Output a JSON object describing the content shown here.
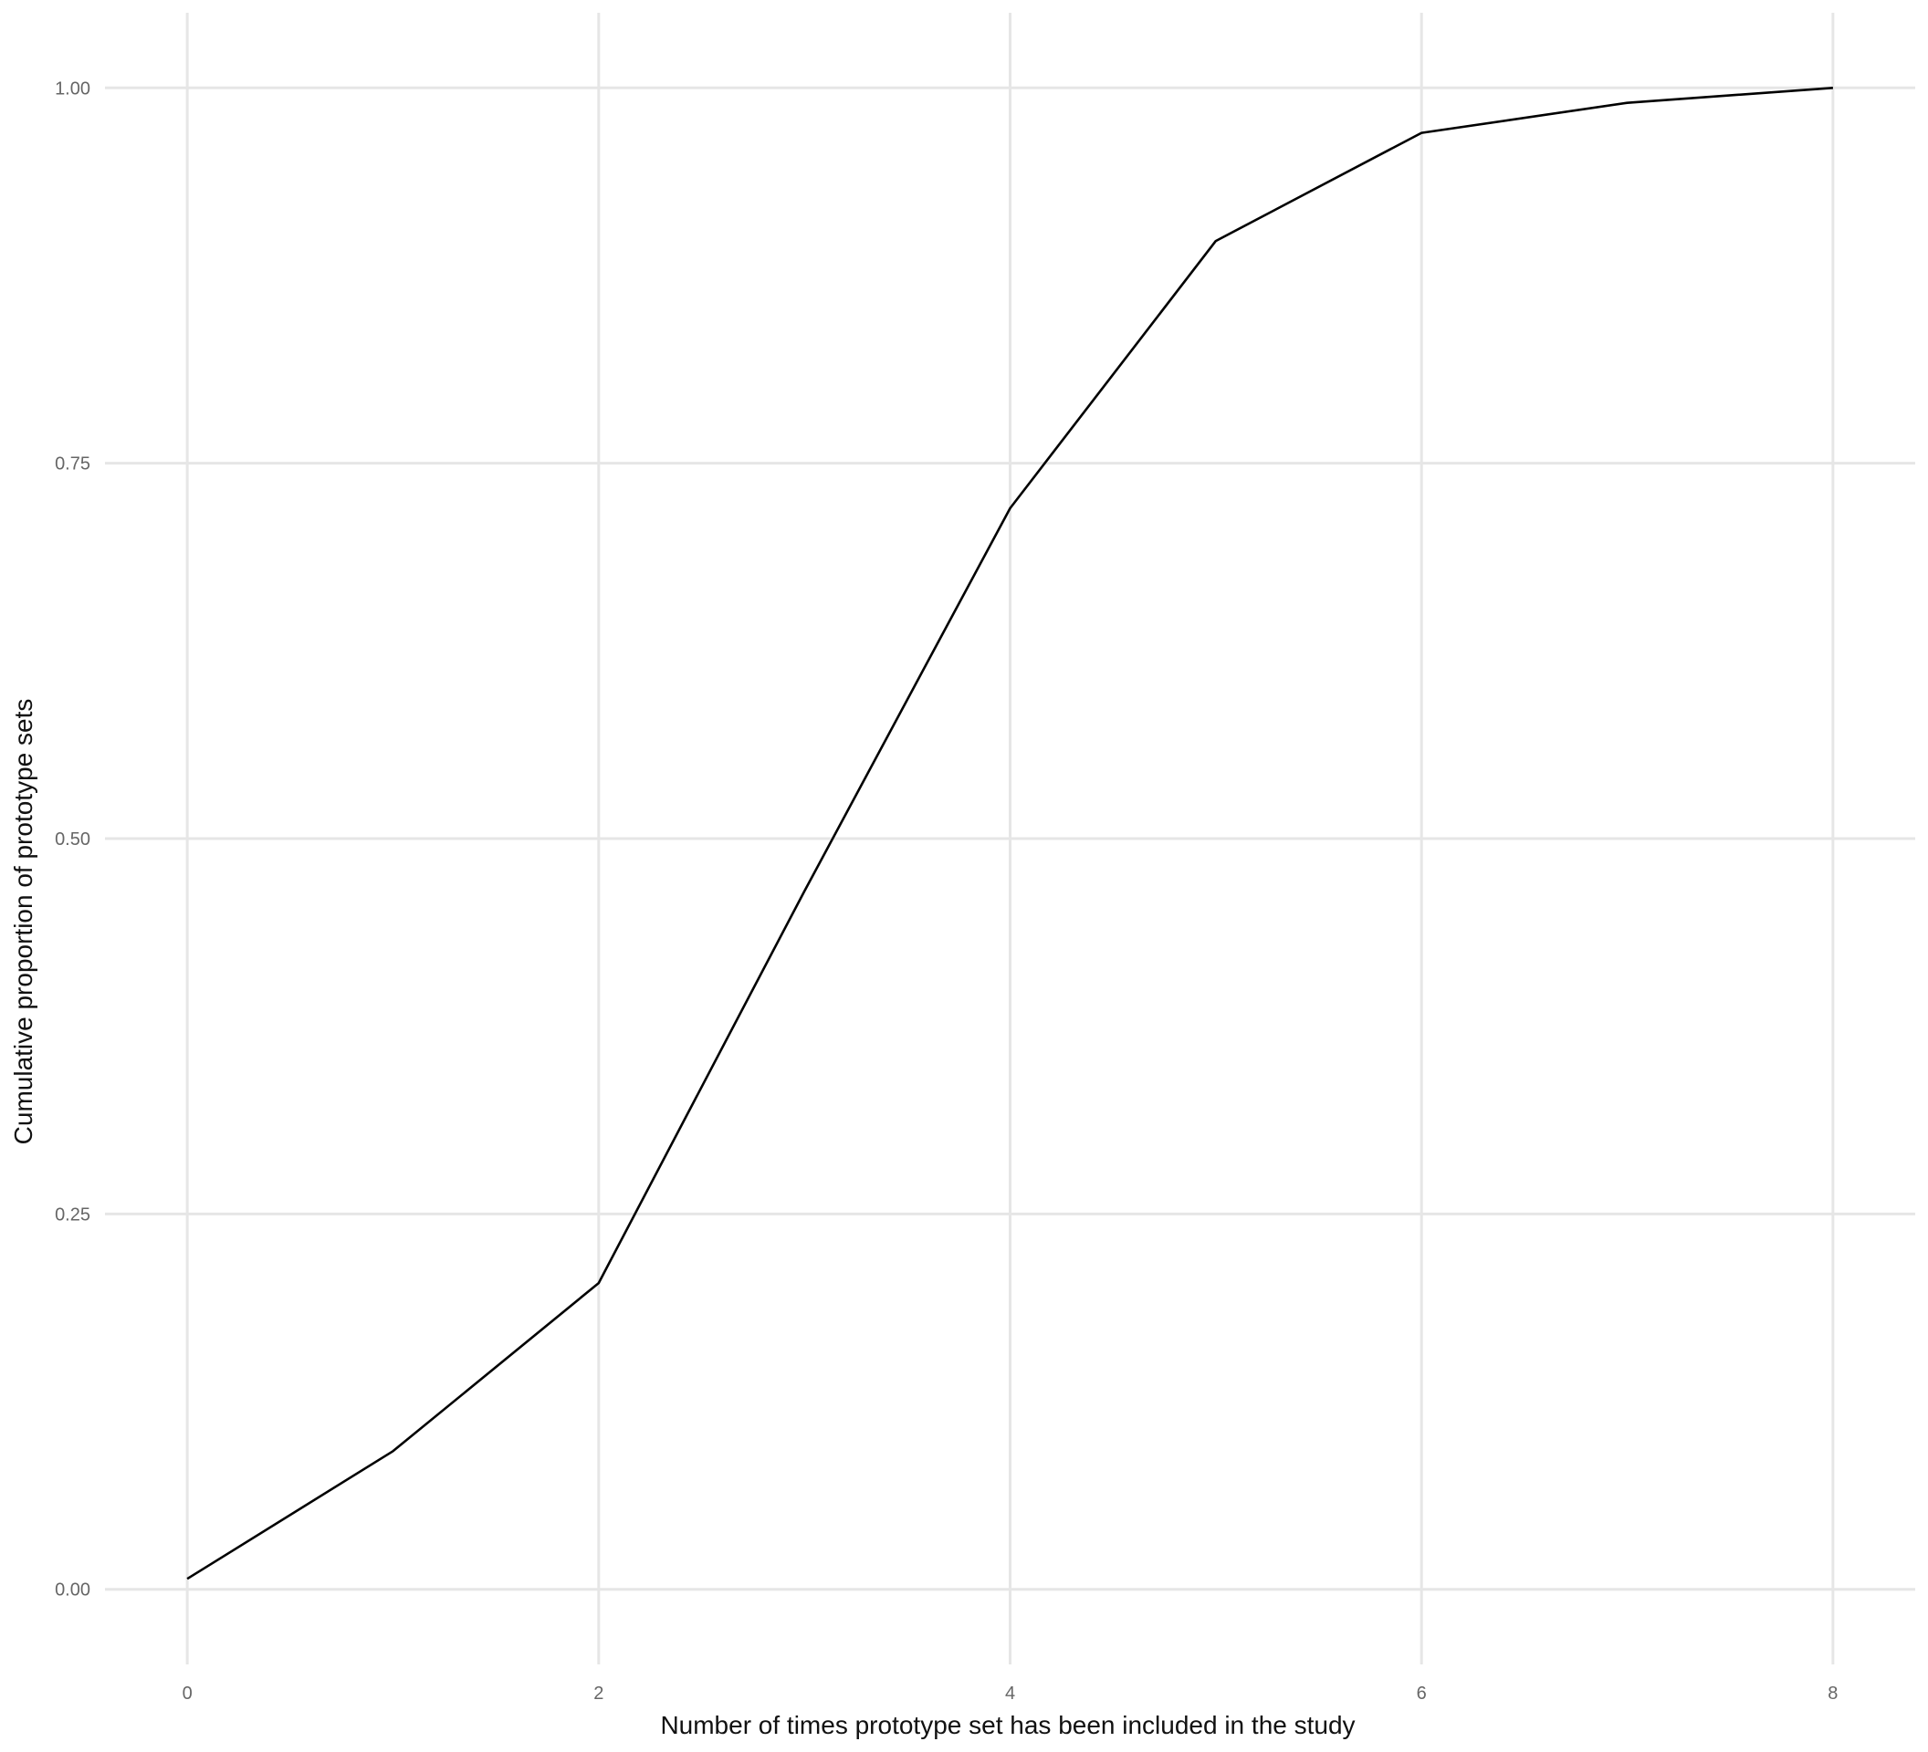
{
  "chart_data": {
    "type": "line",
    "title": "",
    "xlabel": "Number of times prototype set has been included in the study",
    "ylabel": "Cumulative proportion of prototype sets",
    "xlim": [
      -0.4,
      8.4
    ],
    "ylim": [
      -0.05,
      1.05
    ],
    "x_ticks": [
      0,
      2,
      4,
      6,
      8
    ],
    "x_tick_labels": [
      "0",
      "2",
      "4",
      "6",
      "8"
    ],
    "y_ticks": [
      0,
      0.25,
      0.5,
      0.75,
      1
    ],
    "y_tick_labels": [
      "0.00",
      "0.25",
      "0.50",
      "0.75",
      "1.00"
    ],
    "grid": true,
    "series_color": "#000000",
    "grid_color": "#e6e6e6",
    "series": [
      {
        "x": [
          0,
          1,
          2,
          3,
          4,
          5,
          6,
          7,
          8
        ],
        "values": [
          0.007,
          0.092,
          0.204,
          0.465,
          0.72,
          0.898,
          0.97,
          0.99,
          1.0
        ]
      }
    ]
  }
}
